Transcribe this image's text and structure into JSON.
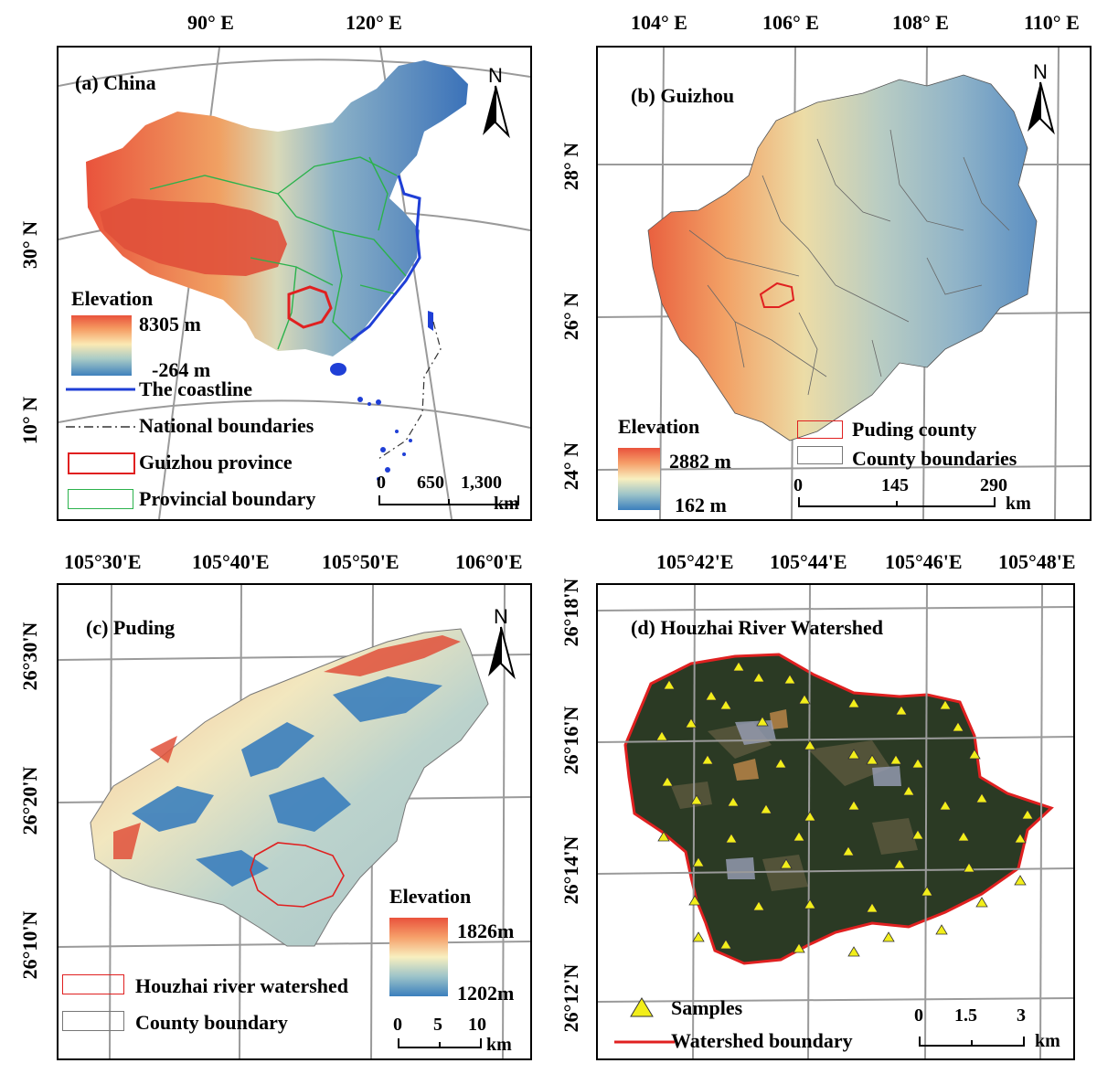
{
  "panels": {
    "a": {
      "title": "(a) China",
      "top_ticks": [
        "90° E",
        "120° E"
      ],
      "left_ticks": [
        "30° N",
        "10° N"
      ],
      "legend": {
        "elevation_label": "Elevation",
        "max": "8305 m",
        "min": "-264 m",
        "coastline": "The coastline",
        "national": "National boundaries",
        "guizhou": "Guizhou province",
        "provincial": "Provincial boundary"
      },
      "scale": {
        "ticks": [
          "0",
          "650",
          "1,300"
        ],
        "unit": "km"
      },
      "north": "N"
    },
    "b": {
      "title": "(b) Guizhou",
      "top_ticks": [
        "104° E",
        "106° E",
        "108° E",
        "110° E"
      ],
      "left_ticks": [
        "28° N",
        "26° N",
        "24° N"
      ],
      "legend": {
        "elevation_label": "Elevation",
        "max": "2882 m",
        "min": "162 m",
        "puding": "Puding county",
        "county": "County boundaries"
      },
      "scale": {
        "ticks": [
          "0",
          "145",
          "290"
        ],
        "unit": "km"
      },
      "north": "N"
    },
    "c": {
      "title": "(c) Puding",
      "top_ticks": [
        "105°30'E",
        "105°40'E",
        "105°50'E",
        "106°0'E"
      ],
      "left_ticks": [
        "26°30'N",
        "26°20'N",
        "26°10'N"
      ],
      "legend": {
        "elevation_label": "Elevation",
        "max": "1826m",
        "min": "1202m",
        "houzhai": "Houzhai river watershed",
        "county": "County boundary"
      },
      "scale": {
        "ticks": [
          "0",
          "5",
          "10"
        ],
        "unit": "km"
      },
      "north": "N"
    },
    "d": {
      "title": "(d) Houzhai River Watershed",
      "top_ticks": [
        "105°42'E",
        "105°44'E",
        "105°46'E",
        "105°48'E"
      ],
      "left_ticks": [
        "26°18'N",
        "26°16'N",
        "26°14'N",
        "26°12'N"
      ],
      "legend": {
        "samples": "Samples",
        "watershed": "Watershed  boundary"
      },
      "scale": {
        "ticks": [
          "0",
          "1.5",
          "3"
        ],
        "unit": "km"
      }
    }
  },
  "colors": {
    "coastline": "#1f3fd6",
    "guizhou_outline": "#e02020",
    "provincial": "#2bb24c",
    "watershed": "#e02020",
    "sample_fill": "#f2ee1a"
  }
}
